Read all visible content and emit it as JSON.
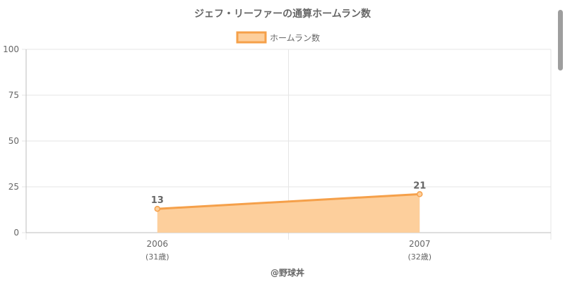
{
  "colors": {
    "series_line": "#f5a04a",
    "series_fill": "#fdcf9c",
    "grid": "#e6e6e6",
    "axis": "#bdbdbd",
    "text": "#666666",
    "title_text": "#666666",
    "footer_text": "#666666",
    "scrollbar": "#9e9e9e"
  },
  "footer": {
    "credit": "@野球丼"
  },
  "chart_data": {
    "type": "area",
    "title": "ジェフ・リーファーの通算ホームラン数",
    "legend": {
      "position": "top-center"
    },
    "categories": [
      "2006",
      "2007"
    ],
    "category_sublabels": [
      "(31歳)",
      "(32歳)"
    ],
    "series": [
      {
        "name": "ホームラン数",
        "values": [
          13,
          21
        ]
      }
    ],
    "data_labels": [
      "13",
      "21"
    ],
    "ylim": [
      0,
      100
    ],
    "yticks": [
      "0",
      "25",
      "50",
      "75",
      "100"
    ],
    "grid": true,
    "xlabel": "",
    "ylabel": ""
  }
}
